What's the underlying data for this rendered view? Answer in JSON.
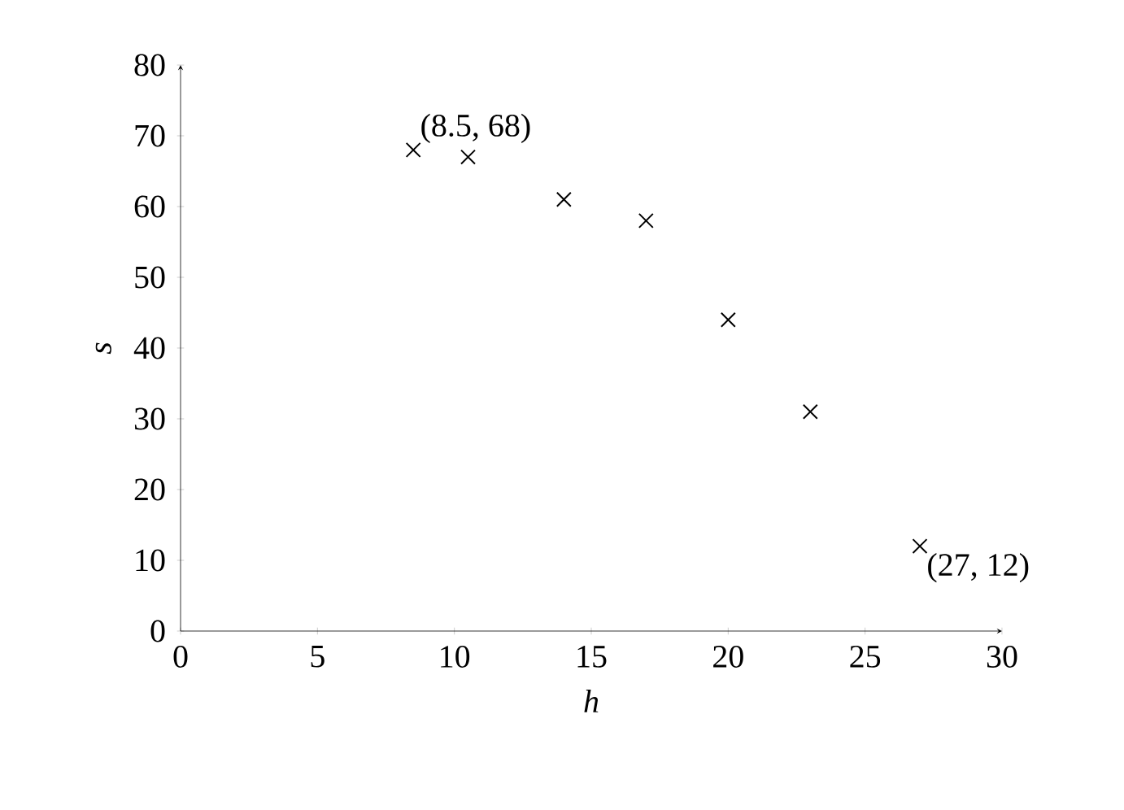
{
  "chart_data": {
    "type": "scatter",
    "xlabel": "h",
    "ylabel": "s",
    "x": [
      8.5,
      10.5,
      14,
      17,
      20,
      23,
      27
    ],
    "series": [
      {
        "color": "#000000",
        "values": [
          68,
          67,
          61,
          58,
          44,
          31,
          12
        ]
      }
    ],
    "xlim": [
      0,
      30
    ],
    "ylim": [
      0,
      80
    ],
    "xticks": [
      0,
      5,
      10,
      15,
      20,
      25,
      30
    ],
    "yticks": [
      0,
      10,
      20,
      30,
      40,
      50,
      60,
      70,
      80
    ],
    "marker": "cross",
    "grid": false,
    "annotations": [
      {
        "text": "(8.5, 68)",
        "x": 8.5,
        "y": 68
      },
      {
        "text": "(27, 12)",
        "x": 27,
        "y": 12
      }
    ]
  }
}
